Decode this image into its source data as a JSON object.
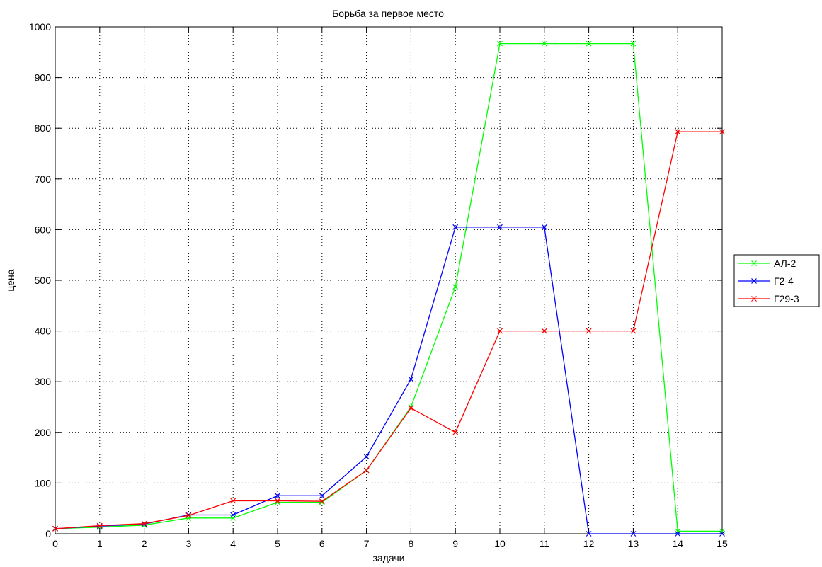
{
  "chart_data": {
    "type": "line",
    "title": "Борьба за первое место",
    "xlabel": "задачи",
    "ylabel": "цена",
    "xlim": [
      0,
      15
    ],
    "ylim": [
      0,
      1000
    ],
    "xticks": [
      0,
      1,
      2,
      3,
      4,
      5,
      6,
      7,
      8,
      9,
      10,
      11,
      12,
      13,
      14,
      15
    ],
    "yticks": [
      0,
      100,
      200,
      300,
      400,
      500,
      600,
      700,
      800,
      900,
      1000
    ],
    "grid": true,
    "legend_position": "right",
    "x": [
      0,
      1,
      2,
      3,
      4,
      5,
      6,
      7,
      8,
      9,
      10,
      11,
      12,
      13,
      14,
      15
    ],
    "series": [
      {
        "name": "АЛ-2",
        "color": "#00ff00",
        "values": [
          10,
          13,
          17,
          31,
          31,
          62,
          62,
          125,
          250,
          487,
          967,
          967,
          967,
          967,
          5,
          5
        ]
      },
      {
        "name": "Г2-4",
        "color": "#0000ff",
        "values": [
          10,
          15,
          19,
          37,
          37,
          75,
          75,
          152,
          305,
          605,
          605,
          605,
          0,
          0,
          0,
          0
        ]
      },
      {
        "name": "Г29-3",
        "color": "#ff0000",
        "values": [
          10,
          16,
          20,
          36,
          65,
          65,
          64,
          125,
          248,
          200,
          400,
          400,
          400,
          400,
          793,
          793
        ]
      }
    ],
    "marker": "x-icon"
  }
}
